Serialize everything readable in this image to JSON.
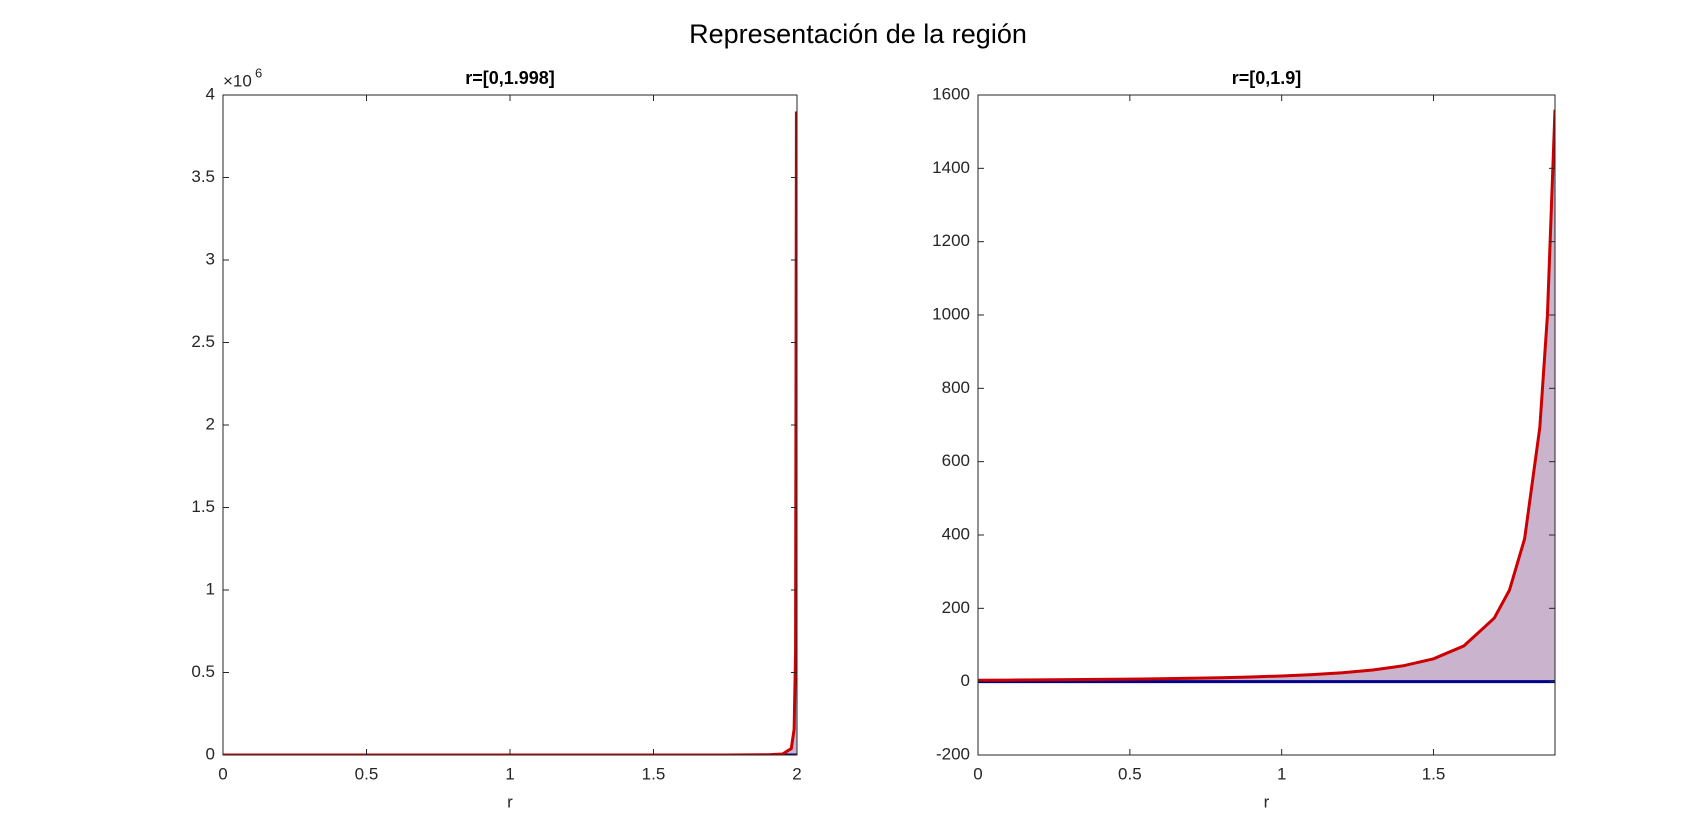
{
  "figure_title": "Representación de la región",
  "chart_data": [
    {
      "type": "line",
      "title": "r=[0,1.998]",
      "x_label": "r",
      "x": [
        0,
        0.25,
        0.5,
        0.75,
        1,
        1.25,
        1.5,
        1.75,
        1.9,
        1.95,
        1.98,
        1.99,
        1.995,
        1.998
      ],
      "series": [
        {
          "color": "#cc0000",
          "values": [
            3.9,
            5.09,
            6.93,
            9.98,
            15.6,
            27.7,
            62.4,
            249.6,
            1560,
            6240,
            39000,
            156000,
            624000,
            3900000
          ]
        },
        {
          "color": "#00008b",
          "values": [
            0,
            0,
            0,
            0,
            0,
            0,
            0,
            0,
            0,
            0,
            0,
            0,
            0,
            0
          ]
        }
      ],
      "fill_color": "#c9b3cd",
      "xlim": [
        0,
        2
      ],
      "xticks": [
        0,
        0.5,
        1,
        1.5,
        2
      ],
      "ylim": [
        0,
        4000000
      ],
      "yticks": [
        0,
        {
          "value": 500000,
          "label": "0.5"
        },
        {
          "value": 1000000,
          "label": "1"
        },
        {
          "value": 1500000,
          "label": "1.5"
        },
        {
          "value": 2000000,
          "label": "2"
        },
        {
          "value": 2500000,
          "label": "2.5"
        },
        {
          "value": 3000000,
          "label": "3"
        },
        {
          "value": 3500000,
          "label": "3.5"
        },
        {
          "value": 4000000,
          "label": "4"
        }
      ],
      "y_exponent_base": "×10",
      "y_exponent": 6
    },
    {
      "type": "line",
      "title": "r=[0,1.9]",
      "x_label": "r",
      "x": [
        0,
        0.1,
        0.2,
        0.3,
        0.4,
        0.5,
        0.6,
        0.7,
        0.8,
        0.9,
        1.0,
        1.1,
        1.2,
        1.3,
        1.4,
        1.5,
        1.6,
        1.7,
        1.75,
        1.8,
        1.85,
        1.875,
        1.9
      ],
      "series": [
        {
          "color": "#cc0000",
          "values": [
            3.9,
            4.32,
            4.81,
            5.4,
            6.09,
            6.93,
            7.96,
            9.23,
            10.83,
            12.89,
            15.6,
            19.26,
            24.38,
            31.84,
            43.33,
            62.4,
            97.5,
            173.3,
            249.6,
            390,
            693.3,
            998.4,
            1560
          ]
        },
        {
          "color": "#00008b",
          "values": [
            0,
            0,
            0,
            0,
            0,
            0,
            0,
            0,
            0,
            0,
            0,
            0,
            0,
            0,
            0,
            0,
            0,
            0,
            0,
            0,
            0,
            0,
            0
          ]
        }
      ],
      "fill_color": "#c9b3cd",
      "xlim": [
        0,
        1.9
      ],
      "xticks": [
        0,
        0.5,
        1,
        1.5
      ],
      "ylim": [
        -200,
        1600
      ],
      "yticks": [
        -200,
        0,
        200,
        400,
        600,
        800,
        1000,
        1200,
        1400,
        1600
      ]
    }
  ]
}
